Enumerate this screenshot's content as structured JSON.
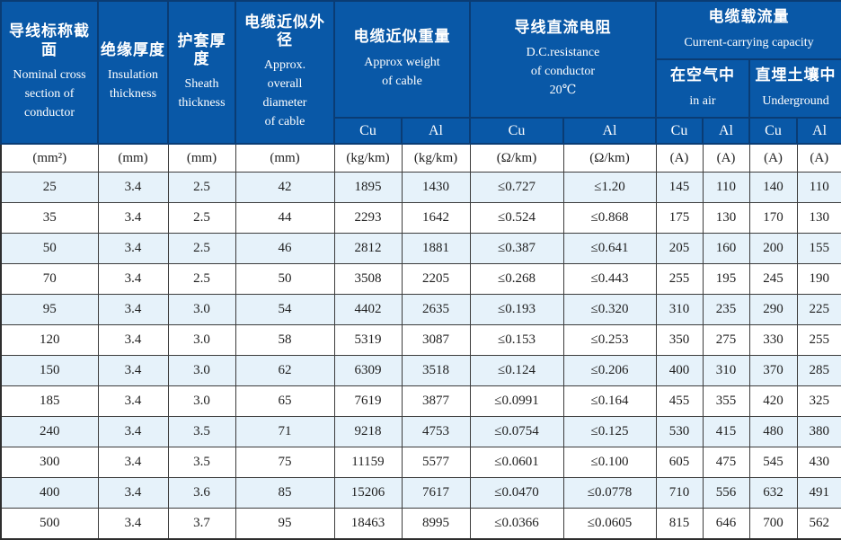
{
  "header": {
    "nominal_section": {
      "zh": "导线标称截面",
      "en": "Nominal  cross\nsection of\nconductor"
    },
    "insulation": {
      "zh": "绝缘厚度",
      "en": "Insulation\nthickness"
    },
    "sheath": {
      "zh": "护套厚度",
      "en": "Sheath\nthickness"
    },
    "diameter": {
      "zh": "电缆近似外径",
      "en": "Approx.\noverall\ndiameter\nof cable"
    },
    "weight": {
      "zh": "电缆近似重量",
      "en": "Approx weight\nof cable"
    },
    "resistance": {
      "zh": "导线直流电阻",
      "en": "D.C.resistance\nof conductor\n20℃"
    },
    "capacity": {
      "zh": "电缆载流量",
      "en": "Current-carrying capacity"
    },
    "in_air": {
      "zh": "在空气中",
      "en": "in air"
    },
    "underground": {
      "zh": "直埋土壤中",
      "en": "Underground"
    },
    "materials": [
      "Cu",
      "Al",
      "Cu",
      "Al",
      "Cu",
      "Al",
      "Cu",
      "Al"
    ]
  },
  "units": [
    "(mm²)",
    "(mm)",
    "(mm)",
    "(mm)",
    "(kg/km)",
    "(kg/km)",
    "(Ω/km)",
    "(Ω/km)",
    "(A)",
    "(A)",
    "(A)",
    "(A)"
  ],
  "rows": [
    [
      "25",
      "3.4",
      "2.5",
      "42",
      "1895",
      "1430",
      "≤0.727",
      "≤1.20",
      "145",
      "110",
      "140",
      "110"
    ],
    [
      "35",
      "3.4",
      "2.5",
      "44",
      "2293",
      "1642",
      "≤0.524",
      "≤0.868",
      "175",
      "130",
      "170",
      "130"
    ],
    [
      "50",
      "3.4",
      "2.5",
      "46",
      "2812",
      "1881",
      "≤0.387",
      "≤0.641",
      "205",
      "160",
      "200",
      "155"
    ],
    [
      "70",
      "3.4",
      "2.5",
      "50",
      "3508",
      "2205",
      "≤0.268",
      "≤0.443",
      "255",
      "195",
      "245",
      "190"
    ],
    [
      "95",
      "3.4",
      "3.0",
      "54",
      "4402",
      "2635",
      "≤0.193",
      "≤0.320",
      "310",
      "235",
      "290",
      "225"
    ],
    [
      "120",
      "3.4",
      "3.0",
      "58",
      "5319",
      "3087",
      "≤0.153",
      "≤0.253",
      "350",
      "275",
      "330",
      "255"
    ],
    [
      "150",
      "3.4",
      "3.0",
      "62",
      "6309",
      "3518",
      "≤0.124",
      "≤0.206",
      "400",
      "310",
      "370",
      "285"
    ],
    [
      "185",
      "3.4",
      "3.0",
      "65",
      "7619",
      "3877",
      "≤0.0991",
      "≤0.164",
      "455",
      "355",
      "420",
      "325"
    ],
    [
      "240",
      "3.4",
      "3.5",
      "71",
      "9218",
      "4753",
      "≤0.0754",
      "≤0.125",
      "530",
      "415",
      "480",
      "380"
    ],
    [
      "300",
      "3.4",
      "3.5",
      "75",
      "11159",
      "5577",
      "≤0.0601",
      "≤0.100",
      "605",
      "475",
      "545",
      "430"
    ],
    [
      "400",
      "3.4",
      "3.6",
      "85",
      "15206",
      "7617",
      "≤0.0470",
      "≤0.0778",
      "710",
      "556",
      "632",
      "491"
    ],
    [
      "500",
      "3.4",
      "3.7",
      "95",
      "18463",
      "8995",
      "≤0.0366",
      "≤0.0605",
      "815",
      "646",
      "700",
      "562"
    ]
  ],
  "colors": {
    "header_bg": "#0958a7",
    "header_divider": "#0a3c74",
    "header_text": "#ffffff",
    "row_alt_bg": "#e6f2fa",
    "row_bg": "#ffffff",
    "grid_line": "#3c3c3c",
    "text": "#1f1f1f"
  }
}
